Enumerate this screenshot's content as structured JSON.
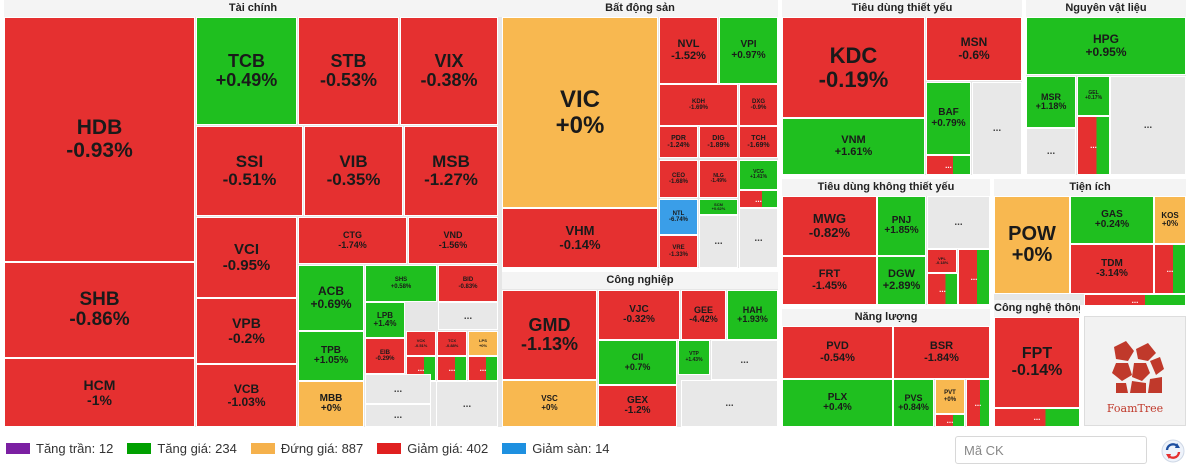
{
  "colors": {
    "ceiling": "#7b1fa2",
    "up": "#00a000",
    "ref": "#f5b14c",
    "down": "#e02020",
    "floor": "#1e90e0",
    "up_tile": "#1fbf1f",
    "down_tile": "#e53030",
    "ref_tile": "#f8b850",
    "floor_tile": "#3a9ee8",
    "more_tile": "#e8e8e8"
  },
  "chart_data": {
    "type": "treemap",
    "sectors": [
      {
        "name": "Tài chính",
        "tiles": [
          {
            "code": "HDB",
            "value": "-0.93%",
            "status": "down"
          },
          {
            "code": "TCB",
            "value": "+0.49%",
            "status": "up"
          },
          {
            "code": "STB",
            "value": "-0.53%",
            "status": "down"
          },
          {
            "code": "VIX",
            "value": "-0.38%",
            "status": "down"
          },
          {
            "code": "SSI",
            "value": "-0.51%",
            "status": "down"
          },
          {
            "code": "VIB",
            "value": "-0.35%",
            "status": "down"
          },
          {
            "code": "MSB",
            "value": "-1.27%",
            "status": "down"
          },
          {
            "code": "SHB",
            "value": "-0.86%",
            "status": "down"
          },
          {
            "code": "VCI",
            "value": "-0.95%",
            "status": "down"
          },
          {
            "code": "CTG",
            "value": "-1.74%",
            "status": "down"
          },
          {
            "code": "VND",
            "value": "-1.56%",
            "status": "down"
          },
          {
            "code": "VPB",
            "value": "-0.2%",
            "status": "down"
          },
          {
            "code": "ACB",
            "value": "+0.69%",
            "status": "up"
          },
          {
            "code": "SHS",
            "value": "+0.58%",
            "status": "up"
          },
          {
            "code": "BID",
            "value": "-0.83%",
            "status": "down"
          },
          {
            "code": "LPB",
            "value": "+1.4%",
            "status": "up"
          },
          {
            "code": "TPB",
            "value": "+1.05%",
            "status": "up"
          },
          {
            "code": "EIB",
            "value": "-0.29%",
            "status": "down"
          },
          {
            "code": "VCK",
            "value": "-0.51%",
            "status": "down"
          },
          {
            "code": "TCX",
            "value": "-0.88%",
            "status": "down"
          },
          {
            "code": "LPS",
            "value": "+0%",
            "status": "ref"
          },
          {
            "code": "HCM",
            "value": "-1%",
            "status": "down"
          },
          {
            "code": "VCB",
            "value": "-1.03%",
            "status": "down"
          },
          {
            "code": "MBB",
            "value": "+0%",
            "status": "ref"
          }
        ]
      },
      {
        "name": "Bất động sản",
        "tiles": [
          {
            "code": "VIC",
            "value": "+0%",
            "status": "ref"
          },
          {
            "code": "NVL",
            "value": "-1.52%",
            "status": "down"
          },
          {
            "code": "VPI",
            "value": "+0.97%",
            "status": "up"
          },
          {
            "code": "KDH",
            "value": "-1.69%",
            "status": "down"
          },
          {
            "code": "DXG",
            "value": "-0.9%",
            "status": "down"
          },
          {
            "code": "PDR",
            "value": "-1.24%",
            "status": "down"
          },
          {
            "code": "DIG",
            "value": "-1.89%",
            "status": "down"
          },
          {
            "code": "TCH",
            "value": "-1.69%",
            "status": "down"
          },
          {
            "code": "CEO",
            "value": "-1.68%",
            "status": "down"
          },
          {
            "code": "NLG",
            "value": "-1.49%",
            "status": "down"
          },
          {
            "code": "VCG",
            "value": "+0.41%",
            "status": "up"
          },
          {
            "code": "NTL",
            "value": "-6.74%",
            "status": "floor"
          },
          {
            "code": "SCM",
            "value": "+0.62%",
            "status": "up"
          },
          {
            "code": "VRE",
            "value": "-1.33%",
            "status": "down"
          },
          {
            "code": "VHM",
            "value": "-0.14%",
            "status": "down"
          }
        ]
      },
      {
        "name": "Công nghiệp",
        "tiles": [
          {
            "code": "GMD",
            "value": "-1.13%",
            "status": "down"
          },
          {
            "code": "VJC",
            "value": "-0.32%",
            "status": "down"
          },
          {
            "code": "GEE",
            "value": "-4.42%",
            "status": "down"
          },
          {
            "code": "HAH",
            "value": "+1.93%",
            "status": "up"
          },
          {
            "code": "CII",
            "value": "+0.7%",
            "status": "up"
          },
          {
            "code": "VTP",
            "value": "+1.43%",
            "status": "up"
          },
          {
            "code": "VCG",
            "value": "+1.41%",
            "status": "up"
          },
          {
            "code": "VSC",
            "value": "+0%",
            "status": "ref"
          },
          {
            "code": "GEX",
            "value": "-1.2%",
            "status": "down"
          }
        ]
      },
      {
        "name": "Tiêu dùng thiết yếu",
        "tiles": [
          {
            "code": "KDC",
            "value": "-0.19%",
            "status": "down"
          },
          {
            "code": "MSN",
            "value": "-0.6%",
            "status": "down"
          },
          {
            "code": "BAF",
            "value": "+0.79%",
            "status": "up"
          },
          {
            "code": "VNM",
            "value": "+1.61%",
            "status": "up"
          }
        ]
      },
      {
        "name": "Nguyên vật liệu",
        "tiles": [
          {
            "code": "HPG",
            "value": "+0.95%",
            "status": "up"
          },
          {
            "code": "MSR",
            "value": "+1.18%",
            "status": "up"
          },
          {
            "code": "GEL",
            "value": "+0.17%",
            "status": "up"
          }
        ]
      },
      {
        "name": "Tiêu dùng không thiết yếu",
        "tiles": [
          {
            "code": "MWG",
            "value": "-0.82%",
            "status": "down"
          },
          {
            "code": "PNJ",
            "value": "+1.85%",
            "status": "up"
          },
          {
            "code": "FRT",
            "value": "-1.45%",
            "status": "down"
          },
          {
            "code": "DGW",
            "value": "+2.89%",
            "status": "up"
          },
          {
            "code": "VPL",
            "value": "-0.18%",
            "status": "down"
          }
        ]
      },
      {
        "name": "Tiện ích",
        "tiles": [
          {
            "code": "POW",
            "value": "+0%",
            "status": "ref"
          },
          {
            "code": "GAS",
            "value": "+0.24%",
            "status": "up"
          },
          {
            "code": "KOS",
            "value": "+0%",
            "status": "ref"
          },
          {
            "code": "TDM",
            "value": "-3.14%",
            "status": "down"
          }
        ]
      },
      {
        "name": "Năng lượng",
        "tiles": [
          {
            "code": "PVD",
            "value": "-0.54%",
            "status": "down"
          },
          {
            "code": "BSR",
            "value": "-1.84%",
            "status": "down"
          },
          {
            "code": "PLX",
            "value": "+0.4%",
            "status": "up"
          },
          {
            "code": "PVS",
            "value": "+0.84%",
            "status": "up"
          },
          {
            "code": "PVT",
            "value": "+0%",
            "status": "ref"
          }
        ]
      },
      {
        "name": "Công nghệ thông tin",
        "tiles": [
          {
            "code": "FPT",
            "value": "-0.14%",
            "status": "down"
          }
        ]
      }
    ]
  },
  "more_label": "...",
  "legend": [
    {
      "label": "Tăng trần: 12",
      "status": "ceiling"
    },
    {
      "label": "Tăng giá: 234",
      "status": "up"
    },
    {
      "label": "Đứng giá: 887",
      "status": "ref"
    },
    {
      "label": "Giảm giá: 402",
      "status": "down"
    },
    {
      "label": "Giảm sàn: 14",
      "status": "floor"
    }
  ],
  "search": {
    "placeholder": "Mã CK"
  },
  "foamtree_label": "FoamTree"
}
